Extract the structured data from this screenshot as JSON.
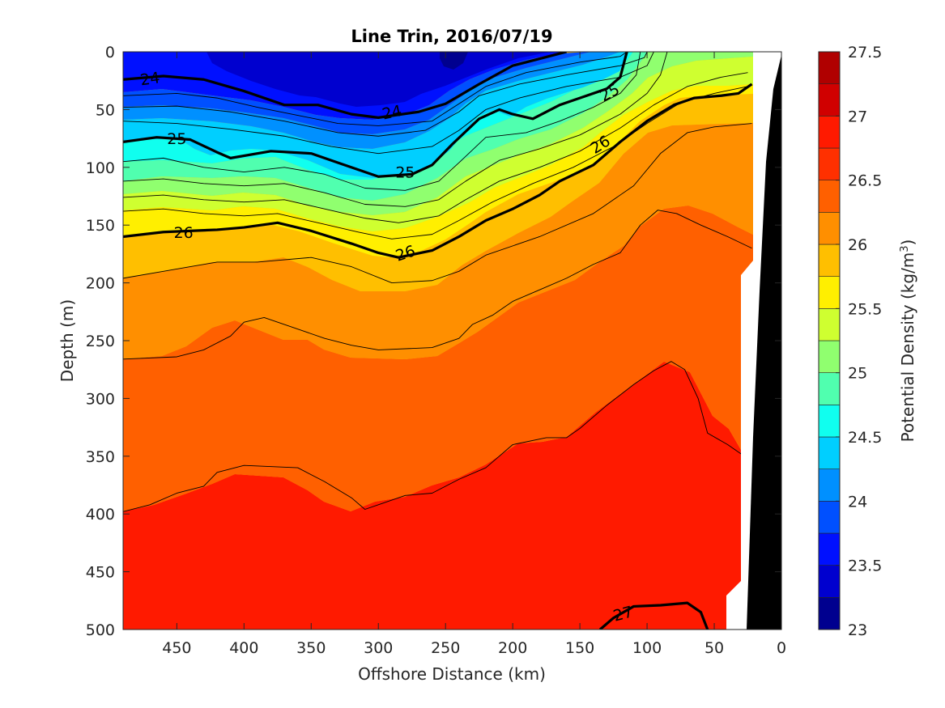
{
  "chart_data": {
    "type": "contour",
    "title": "Line Trin, 2016/07/19",
    "xlabel": "Offshore Distance (km)",
    "ylabel": "Depth (m)",
    "colorbar_label_prefix": "Potential Density (kg/m",
    "colorbar_label_sup": "3",
    "colorbar_label_suffix": ")",
    "xlim": [
      490,
      0
    ],
    "ylim": [
      0,
      500
    ],
    "x_ticks": [
      "450",
      "400",
      "350",
      "300",
      "250",
      "200",
      "150",
      "100",
      "50",
      "0"
    ],
    "x_tick_values": [
      450,
      400,
      350,
      300,
      250,
      200,
      150,
      100,
      50,
      0
    ],
    "y_ticks": [
      "0",
      "50",
      "100",
      "150",
      "200",
      "250",
      "300",
      "350",
      "400",
      "450",
      "500"
    ],
    "y_tick_values": [
      0,
      50,
      100,
      150,
      200,
      250,
      300,
      350,
      400,
      450,
      500
    ],
    "colorbar_ticks": [
      "23",
      "23.5",
      "24",
      "24.5",
      "25",
      "25.5",
      "26",
      "26.5",
      "27",
      "27.5"
    ],
    "colorbar_tick_values": [
      23,
      23.5,
      24,
      24.5,
      25,
      25.5,
      26,
      26.5,
      27,
      27.5
    ],
    "colorbar_range": [
      23,
      27.5
    ],
    "levels": [
      23.25,
      23.5,
      23.75,
      24,
      24.25,
      24.5,
      24.75,
      25,
      25.25,
      25.5,
      25.75,
      26,
      26.25,
      26.5,
      26.75,
      27,
      27.25
    ],
    "level_colors": [
      "#00008f",
      "#0000cf",
      "#0010ff",
      "#0050ff",
      "#0090ff",
      "#00cfff",
      "#10ffef",
      "#50ffaf",
      "#90ff6f",
      "#cfff30",
      "#ffef00",
      "#ffbf00",
      "#ff8f00",
      "#ff6000",
      "#ff3000",
      "#ff1a00",
      "#d00000",
      "#b00000"
    ],
    "bold_contour_labels": [
      "24",
      "25",
      "26",
      "27"
    ],
    "contours": [
      {
        "level": 24,
        "label": "24",
        "bold": true,
        "points": [
          [
            490,
            24
          ],
          [
            460,
            21
          ],
          [
            430,
            24
          ],
          [
            400,
            34
          ],
          [
            370,
            46
          ],
          [
            345,
            46
          ],
          [
            320,
            54
          ],
          [
            300,
            57
          ],
          [
            270,
            52
          ],
          [
            250,
            45
          ],
          [
            225,
            28
          ],
          [
            200,
            12
          ],
          [
            170,
            3
          ],
          [
            160,
            0
          ]
        ]
      },
      {
        "level": 24.25,
        "bold": false,
        "points": [
          [
            490,
            38
          ],
          [
            450,
            36
          ],
          [
            420,
            40
          ],
          [
            390,
            48
          ],
          [
            360,
            55
          ],
          [
            330,
            62
          ],
          [
            300,
            64
          ],
          [
            260,
            60
          ],
          [
            240,
            45
          ],
          [
            220,
            30
          ],
          [
            190,
            18
          ],
          [
            150,
            9
          ],
          [
            120,
            4
          ],
          [
            115,
            0
          ]
        ]
      },
      {
        "level": 24.5,
        "bold": false,
        "points": [
          [
            490,
            48
          ],
          [
            450,
            47
          ],
          [
            410,
            52
          ],
          [
            370,
            60
          ],
          [
            330,
            70
          ],
          [
            300,
            73
          ],
          [
            265,
            68
          ],
          [
            240,
            52
          ],
          [
            225,
            38
          ],
          [
            195,
            28
          ],
          [
            160,
            20
          ],
          [
            120,
            12
          ],
          [
            102,
            5
          ],
          [
            100,
            0
          ]
        ]
      },
      {
        "level": 24.75,
        "bold": false,
        "points": [
          [
            490,
            60
          ],
          [
            450,
            62
          ],
          [
            410,
            67
          ],
          [
            370,
            73
          ],
          [
            335,
            82
          ],
          [
            300,
            88
          ],
          [
            260,
            82
          ],
          [
            240,
            68
          ],
          [
            220,
            50
          ],
          [
            195,
            40
          ],
          [
            160,
            30
          ],
          [
            120,
            22
          ],
          [
            100,
            12
          ],
          [
            95,
            0
          ]
        ]
      },
      {
        "level": 25,
        "label": "25",
        "bold": true,
        "points": [
          [
            490,
            78
          ],
          [
            465,
            74
          ],
          [
            440,
            76
          ],
          [
            420,
            87
          ],
          [
            410,
            92
          ],
          [
            380,
            86
          ],
          [
            350,
            88
          ],
          [
            330,
            96
          ],
          [
            300,
            108
          ],
          [
            275,
            106
          ],
          [
            260,
            98
          ],
          [
            245,
            80
          ],
          [
            225,
            58
          ],
          [
            210,
            50
          ],
          [
            200,
            54
          ],
          [
            185,
            58
          ],
          [
            165,
            46
          ],
          [
            150,
            40
          ],
          [
            130,
            32
          ],
          [
            120,
            22
          ],
          [
            115,
            0
          ]
        ]
      },
      {
        "level": 25.25,
        "bold": false,
        "points": [
          [
            490,
            95
          ],
          [
            460,
            92
          ],
          [
            430,
            100
          ],
          [
            400,
            104
          ],
          [
            370,
            100
          ],
          [
            340,
            106
          ],
          [
            310,
            118
          ],
          [
            280,
            120
          ],
          [
            255,
            112
          ],
          [
            240,
            96
          ],
          [
            220,
            74
          ],
          [
            190,
            70
          ],
          [
            165,
            60
          ],
          [
            140,
            48
          ],
          [
            120,
            36
          ],
          [
            108,
            20
          ],
          [
            105,
            0
          ]
        ]
      },
      {
        "level": 25.5,
        "bold": false,
        "points": [
          [
            490,
            112
          ],
          [
            460,
            110
          ],
          [
            430,
            114
          ],
          [
            400,
            116
          ],
          [
            370,
            114
          ],
          [
            340,
            122
          ],
          [
            310,
            132
          ],
          [
            280,
            134
          ],
          [
            255,
            128
          ],
          [
            235,
            112
          ],
          [
            210,
            94
          ],
          [
            180,
            84
          ],
          [
            150,
            72
          ],
          [
            120,
            54
          ],
          [
            100,
            36
          ],
          [
            90,
            20
          ],
          [
            85,
            0
          ]
        ]
      },
      {
        "level": 25.75,
        "bold": false,
        "points": [
          [
            490,
            126
          ],
          [
            460,
            124
          ],
          [
            430,
            128
          ],
          [
            400,
            130
          ],
          [
            370,
            128
          ],
          [
            340,
            136
          ],
          [
            310,
            144
          ],
          [
            285,
            148
          ],
          [
            255,
            142
          ],
          [
            235,
            128
          ],
          [
            210,
            112
          ],
          [
            180,
            100
          ],
          [
            150,
            86
          ],
          [
            120,
            66
          ],
          [
            95,
            46
          ],
          [
            70,
            30
          ],
          [
            45,
            22
          ],
          [
            25,
            18
          ]
        ]
      },
      {
        "level": 25.75,
        "bold": false,
        "points": [
          [
            490,
            138
          ],
          [
            460,
            136
          ],
          [
            430,
            140
          ],
          [
            400,
            142
          ],
          [
            375,
            140
          ],
          [
            345,
            148
          ],
          [
            315,
            156
          ],
          [
            290,
            162
          ],
          [
            260,
            158
          ],
          [
            240,
            146
          ],
          [
            215,
            130
          ],
          [
            185,
            114
          ],
          [
            155,
            100
          ],
          [
            125,
            82
          ],
          [
            100,
            62
          ],
          [
            75,
            44
          ],
          [
            50,
            36
          ],
          [
            25,
            30
          ]
        ]
      },
      {
        "level": 26,
        "label": "26",
        "bold": true,
        "points": [
          [
            490,
            160
          ],
          [
            460,
            156
          ],
          [
            420,
            154
          ],
          [
            400,
            152
          ],
          [
            375,
            148
          ],
          [
            350,
            155
          ],
          [
            320,
            166
          ],
          [
            300,
            174
          ],
          [
            285,
            178
          ],
          [
            260,
            172
          ],
          [
            240,
            160
          ],
          [
            220,
            146
          ],
          [
            200,
            136
          ],
          [
            180,
            124
          ],
          [
            165,
            112
          ],
          [
            140,
            98
          ],
          [
            120,
            78
          ],
          [
            100,
            60
          ],
          [
            80,
            46
          ],
          [
            65,
            40
          ],
          [
            45,
            38
          ],
          [
            32,
            36
          ],
          [
            22,
            28
          ]
        ]
      },
      {
        "level": 26.25,
        "bold": false,
        "points": [
          [
            490,
            196
          ],
          [
            460,
            190
          ],
          [
            440,
            186
          ],
          [
            420,
            182
          ],
          [
            390,
            182
          ],
          [
            350,
            178
          ],
          [
            320,
            186
          ],
          [
            290,
            200
          ],
          [
            260,
            198
          ],
          [
            240,
            190
          ],
          [
            220,
            176
          ],
          [
            180,
            160
          ],
          [
            140,
            140
          ],
          [
            110,
            116
          ],
          [
            90,
            88
          ],
          [
            70,
            70
          ],
          [
            50,
            65
          ],
          [
            22,
            62
          ]
        ]
      },
      {
        "level": 26.5,
        "bold": false,
        "points": [
          [
            490,
            266
          ],
          [
            450,
            264
          ],
          [
            430,
            258
          ],
          [
            410,
            246
          ],
          [
            400,
            234
          ],
          [
            385,
            230
          ],
          [
            360,
            240
          ],
          [
            340,
            248
          ],
          [
            320,
            254
          ],
          [
            300,
            258
          ],
          [
            260,
            256
          ],
          [
            240,
            248
          ],
          [
            230,
            236
          ],
          [
            215,
            228
          ],
          [
            200,
            216
          ],
          [
            180,
            206
          ],
          [
            160,
            196
          ],
          [
            140,
            184
          ],
          [
            120,
            174
          ],
          [
            105,
            150
          ],
          [
            92,
            137
          ],
          [
            78,
            140
          ],
          [
            60,
            150
          ],
          [
            40,
            160
          ],
          [
            22,
            170
          ]
        ]
      },
      {
        "level": 26.75,
        "bold": false,
        "points": [
          [
            490,
            398
          ],
          [
            470,
            392
          ],
          [
            450,
            382
          ],
          [
            430,
            376
          ],
          [
            420,
            364
          ],
          [
            400,
            358
          ],
          [
            360,
            360
          ],
          [
            340,
            372
          ],
          [
            320,
            386
          ],
          [
            310,
            396
          ],
          [
            300,
            392
          ],
          [
            280,
            384
          ],
          [
            260,
            382
          ],
          [
            240,
            370
          ],
          [
            220,
            360
          ],
          [
            200,
            340
          ],
          [
            175,
            334
          ],
          [
            160,
            334
          ],
          [
            150,
            326
          ],
          [
            130,
            306
          ],
          [
            110,
            288
          ],
          [
            95,
            276
          ],
          [
            82,
            268
          ],
          [
            72,
            275
          ],
          [
            62,
            300
          ],
          [
            55,
            330
          ],
          [
            40,
            340
          ],
          [
            30,
            348
          ]
        ]
      },
      {
        "level": 27,
        "label": "27",
        "bold": true,
        "points": [
          [
            135,
            500
          ],
          [
            125,
            490
          ],
          [
            110,
            480
          ],
          [
            90,
            479
          ],
          [
            70,
            477
          ],
          [
            60,
            485
          ],
          [
            55,
            500
          ]
        ]
      }
    ]
  }
}
